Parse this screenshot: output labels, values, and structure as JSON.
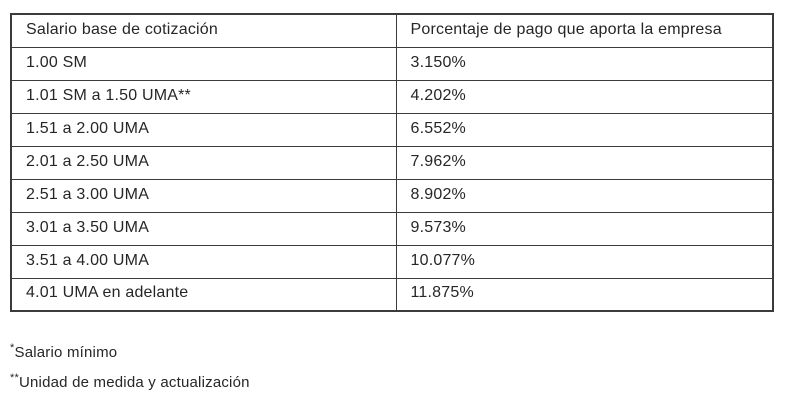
{
  "table": {
    "headers": [
      "Salario base de cotización",
      "Porcentaje de pago que aporta la empresa"
    ],
    "rows": [
      [
        "1.00 SM",
        "3.150%"
      ],
      [
        "1.01 SM a 1.50 UMA**",
        "4.202%"
      ],
      [
        "1.51 a 2.00 UMA",
        "6.552%"
      ],
      [
        "2.01 a 2.50 UMA",
        "7.962%"
      ],
      [
        "2.51 a 3.00 UMA",
        "8.902%"
      ],
      [
        "3.01 a 3.50 UMA",
        "9.573%"
      ],
      [
        "3.51 a 4.00 UMA",
        "10.077%"
      ],
      [
        "4.01 UMA en adelante",
        "11.875%"
      ]
    ]
  },
  "footnotes": [
    {
      "marker": "*",
      "text": "Salario mínimo"
    },
    {
      "marker": "**",
      "text": "Unidad de medida y actualización"
    }
  ],
  "colors": {
    "border": "#3b3b3b",
    "text": "#262626",
    "background": "#ffffff"
  }
}
